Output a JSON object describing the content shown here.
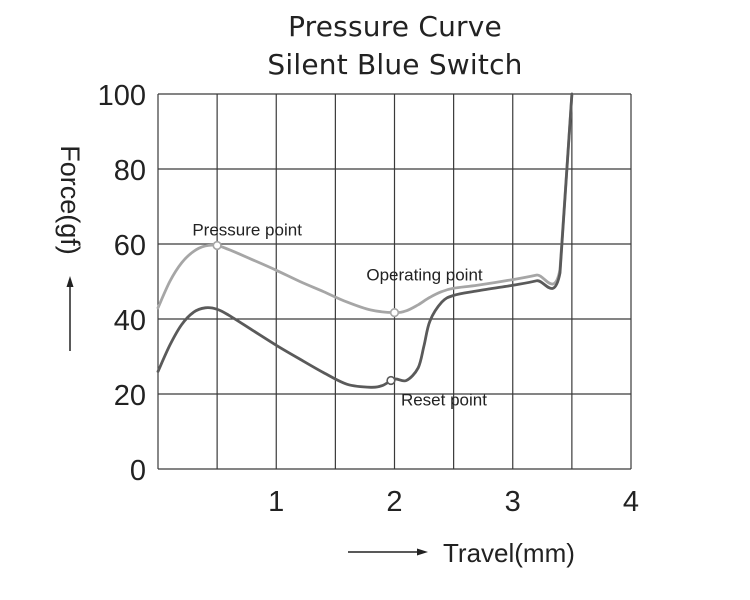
{
  "chart_data": {
    "type": "line",
    "title": "Pressure Curve",
    "subtitle": "Silent Blue Switch",
    "xlabel": "Travel(mm)",
    "ylabel": "Force(gf)",
    "xlim": [
      0,
      4
    ],
    "ylim": [
      0,
      100
    ],
    "x_ticks": [
      1,
      2,
      3,
      4
    ],
    "y_ticks": [
      0,
      20,
      40,
      60,
      80,
      100
    ],
    "grid": true,
    "series": [
      {
        "color": "#a6a6a6",
        "points": [
          [
            0.0,
            43
          ],
          [
            0.1,
            50
          ],
          [
            0.2,
            55
          ],
          [
            0.3,
            58
          ],
          [
            0.4,
            59.5
          ],
          [
            0.5,
            59.6
          ],
          [
            0.6,
            58.5
          ],
          [
            0.8,
            55.8
          ],
          [
            1.0,
            53
          ],
          [
            1.2,
            50
          ],
          [
            1.4,
            47.3
          ],
          [
            1.6,
            44.5
          ],
          [
            1.8,
            42.4
          ],
          [
            2.0,
            41.7
          ],
          [
            2.1,
            42.2
          ],
          [
            2.2,
            43.8
          ],
          [
            2.3,
            45.8
          ],
          [
            2.4,
            47.3
          ],
          [
            2.5,
            48.2
          ],
          [
            2.7,
            49
          ],
          [
            3.0,
            50.5
          ],
          [
            3.2,
            51.7
          ],
          [
            3.4,
            53.2
          ],
          [
            3.5,
            100
          ]
        ]
      },
      {
        "color": "#5a5a5a",
        "points": [
          [
            0.0,
            26
          ],
          [
            0.1,
            33
          ],
          [
            0.2,
            38.5
          ],
          [
            0.3,
            41.8
          ],
          [
            0.4,
            43
          ],
          [
            0.5,
            42.6
          ],
          [
            0.6,
            41
          ],
          [
            0.8,
            37
          ],
          [
            1.0,
            33
          ],
          [
            1.2,
            29.3
          ],
          [
            1.4,
            25.7
          ],
          [
            1.6,
            22.6
          ],
          [
            1.8,
            21.8
          ],
          [
            1.9,
            22.3
          ],
          [
            2.0,
            24
          ],
          [
            2.1,
            23.6
          ],
          [
            2.2,
            27
          ],
          [
            2.25,
            33
          ],
          [
            2.3,
            39.5
          ],
          [
            2.4,
            44.5
          ],
          [
            2.5,
            46.3
          ],
          [
            2.7,
            47.5
          ],
          [
            3.0,
            49
          ],
          [
            3.2,
            50.2
          ],
          [
            3.4,
            52.3
          ],
          [
            3.5,
            100
          ]
        ]
      }
    ],
    "annotations": [
      {
        "text": "Pressure point",
        "x": 0.5,
        "y": 59.6,
        "marker_color": "#a6a6a6"
      },
      {
        "text": "Operating point",
        "x": 2.0,
        "y": 41.7,
        "marker_color": "#a6a6a6"
      },
      {
        "text": "Reset point",
        "x": 1.97,
        "y": 23.6,
        "marker_color": "#5a5a5a"
      }
    ]
  }
}
